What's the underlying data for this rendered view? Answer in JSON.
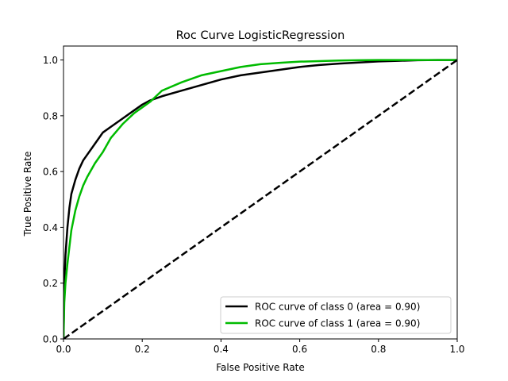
{
  "chart_data": {
    "type": "line",
    "title": "Roc Curve LogisticRegression",
    "xlabel": "False Positive Rate",
    "ylabel": "True Positive Rate",
    "xlim": [
      0.0,
      1.0
    ],
    "ylim": [
      0.0,
      1.05
    ],
    "xticks": [
      "0.0",
      "0.2",
      "0.4",
      "0.6",
      "0.8",
      "1.0"
    ],
    "yticks": [
      "0.0",
      "0.2",
      "0.4",
      "0.6",
      "0.8",
      "1.0"
    ],
    "grid": false,
    "legend_position": "lower-right",
    "series": [
      {
        "name": "ROC curve of class 0 (area = 0.90)",
        "color": "#000000",
        "line_style": "solid",
        "x": [
          0.0,
          0.002,
          0.005,
          0.01,
          0.015,
          0.02,
          0.03,
          0.04,
          0.05,
          0.06,
          0.08,
          0.1,
          0.12,
          0.15,
          0.18,
          0.2,
          0.22,
          0.25,
          0.3,
          0.35,
          0.4,
          0.45,
          0.5,
          0.55,
          0.6,
          0.65,
          0.7,
          0.75,
          0.8,
          0.85,
          0.9,
          0.95,
          1.0
        ],
        "y": [
          0.0,
          0.2,
          0.3,
          0.4,
          0.47,
          0.52,
          0.57,
          0.61,
          0.64,
          0.66,
          0.7,
          0.74,
          0.76,
          0.79,
          0.82,
          0.84,
          0.855,
          0.87,
          0.89,
          0.91,
          0.93,
          0.945,
          0.955,
          0.965,
          0.975,
          0.982,
          0.987,
          0.991,
          0.995,
          0.997,
          0.999,
          1.0,
          1.0
        ]
      },
      {
        "name": "ROC curve of class 1 (area = 0.90)",
        "color": "#00bb00",
        "line_style": "solid",
        "x": [
          0.0,
          0.002,
          0.005,
          0.01,
          0.015,
          0.02,
          0.03,
          0.04,
          0.05,
          0.06,
          0.08,
          0.1,
          0.12,
          0.15,
          0.18,
          0.2,
          0.22,
          0.25,
          0.3,
          0.35,
          0.4,
          0.45,
          0.5,
          0.55,
          0.6,
          0.65,
          0.7,
          0.75,
          0.8,
          0.85,
          0.9,
          0.95,
          1.0
        ],
        "y": [
          0.0,
          0.13,
          0.2,
          0.27,
          0.33,
          0.39,
          0.46,
          0.51,
          0.55,
          0.58,
          0.63,
          0.67,
          0.72,
          0.77,
          0.81,
          0.83,
          0.85,
          0.89,
          0.92,
          0.945,
          0.96,
          0.975,
          0.985,
          0.99,
          0.994,
          0.996,
          0.998,
          0.999,
          1.0,
          1.0,
          1.0,
          1.0,
          1.0
        ]
      },
      {
        "name": "",
        "color": "#000000",
        "line_style": "dashed",
        "x": [
          0.0,
          1.0
        ],
        "y": [
          0.0,
          1.0
        ]
      }
    ]
  }
}
